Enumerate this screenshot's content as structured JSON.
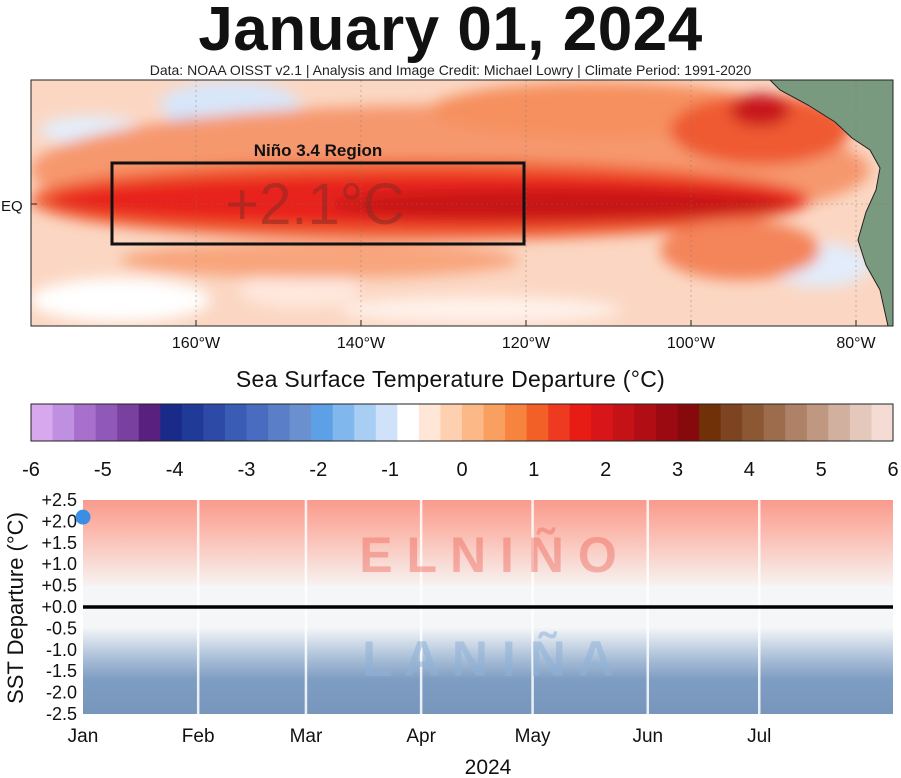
{
  "header": {
    "title": "January 01, 2024",
    "subtitle": "Data: NOAA OISST v2.1 | Analysis and Image Credit: Michael Lowry | Climate Period: 1991-2020"
  },
  "map": {
    "region_label": "Niño 3.4 Region",
    "anomaly_readout": "+2.1°C",
    "eq_label": "EQ",
    "lon_labels": [
      "160°W",
      "140°W",
      "120°W",
      "100°W",
      "80°W"
    ],
    "colors": {
      "box": "#111111",
      "land": "#7a9a80",
      "warm": "#e8211a",
      "deep": "#b00f10"
    }
  },
  "colorbar": {
    "title": "Sea Surface Temperature Departure (°C)",
    "ticks": [
      "-6",
      "-5",
      "-4",
      "-3",
      "-2",
      "-1",
      "0",
      "1",
      "2",
      "3",
      "4",
      "5",
      "6"
    ],
    "colors": [
      "#d8a8ee",
      "#c090e0",
      "#a870cc",
      "#9058b8",
      "#7a40a0",
      "#5a2080",
      "#1a2a88",
      "#203a98",
      "#2d4aa6",
      "#3a5cb4",
      "#4a6cc0",
      "#5a7ec8",
      "#6a90d0",
      "#5ea0e6",
      "#80b8ee",
      "#a8cef4",
      "#cfe2fa",
      "#ffffff",
      "#ffe6d6",
      "#ffd0b0",
      "#fcb886",
      "#f9a060",
      "#f6843e",
      "#f26028",
      "#ee3a20",
      "#e81c14",
      "#d8161a",
      "#c41216",
      "#b00e14",
      "#9a0a10",
      "#860a0c",
      "#703008",
      "#7c4420",
      "#8c5834",
      "#9c6c4c",
      "#ae8266",
      "#c09882",
      "#d2b0a0",
      "#e4c8bc",
      "#f4dcd4"
    ]
  },
  "chart_data": {
    "type": "scatter",
    "x": [
      "Jan 01"
    ],
    "y": [
      2.1
    ],
    "xlabel": "2024",
    "ylabel": "SST Departure (°C)",
    "x_tick_labels": [
      "Jan",
      "Feb",
      "Mar",
      "Apr",
      "May",
      "Jun",
      "Jul"
    ],
    "y_tick_labels": [
      "+2.5",
      "+2.0",
      "+1.5",
      "+1.0",
      "+0.5",
      "+0.0",
      "-0.5",
      "-1.0",
      "-1.5",
      "-2.0",
      "-2.5"
    ],
    "ylim": [
      -2.5,
      2.5
    ],
    "xlim": [
      "Jan 01",
      "Aug 06"
    ],
    "zero_line": 0.0,
    "el_nino_text": "E L N I Ñ O",
    "la_nina_text": "L A N I Ñ A",
    "colors": {
      "point": "#3a8ee6",
      "warm_band": "#f8a096",
      "cool_band": "#7c9cc2",
      "zero_line": "#000000"
    }
  }
}
